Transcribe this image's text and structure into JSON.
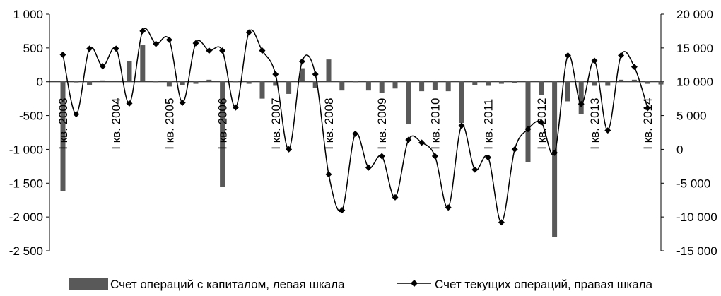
{
  "chart_data": {
    "type": "bar+line",
    "title": "",
    "x_tick_labels": [
      "I кв. 2003",
      "I кв. 2004",
      "I кв. 2005",
      "I кв. 2006",
      "I кв. 2007",
      "I кв. 2008",
      "I кв. 2009",
      "I кв. 2010",
      "I кв. 2011",
      "I кв. 2012",
      "I кв. 2013",
      "I кв. 2014"
    ],
    "x_tick_positions": [
      0,
      4,
      8,
      12,
      16,
      20,
      24,
      28,
      32,
      36,
      40,
      44
    ],
    "left_axis": {
      "ylim": [
        -2500,
        1000
      ],
      "ticks": [
        1000,
        500,
        0,
        -500,
        -1000,
        -1500,
        -2000,
        -2500
      ],
      "tick_labels": [
        "1 000",
        "500",
        "0",
        "-500",
        "-1 000",
        "-1 500",
        "-2 000",
        "-2 500"
      ]
    },
    "right_axis": {
      "ylim": [
        -15000,
        20000
      ],
      "ticks": [
        20000,
        15000,
        10000,
        5000,
        0,
        -5000,
        -10000,
        -15000
      ],
      "tick_labels": [
        "20 000",
        "15 000",
        "10 000",
        "5 000",
        "0",
        "-5 000",
        "-10 000",
        "-15 000"
      ]
    },
    "legend_position": "bottom",
    "series": [
      {
        "name": "Счет операций с капиталом, левая шкала",
        "type": "bar",
        "axis": "left",
        "color": "#595959",
        "values": [
          -1620,
          -10,
          -50,
          20,
          10,
          310,
          540,
          0,
          -70,
          -50,
          -30,
          30,
          -1550,
          0,
          -30,
          -250,
          -60,
          -180,
          200,
          -90,
          330,
          -130,
          0,
          -130,
          -160,
          -100,
          -630,
          -140,
          -120,
          -140,
          -610,
          -50,
          -60,
          -30,
          -20,
          -1190,
          -200,
          -2300,
          -290,
          -480,
          -60,
          -60,
          30,
          30,
          -30,
          -40
        ]
      },
      {
        "name": "Счет текущих операций, правая шкала",
        "type": "line",
        "axis": "right",
        "color": "#000000",
        "marker": "diamond",
        "values": [
          14000,
          5200,
          14900,
          12300,
          14900,
          6800,
          17500,
          15600,
          16200,
          6900,
          15700,
          14600,
          14600,
          6200,
          17300,
          14600,
          11100,
          0,
          13000,
          11100,
          -3700,
          -9000,
          2300,
          -2700,
          -1000,
          -7100,
          1400,
          1000,
          -1000,
          -8600,
          3500,
          -3000,
          -1200,
          -10800,
          0,
          3000,
          4000,
          -500,
          13900,
          6700,
          13100,
          2800,
          13900,
          12200,
          6100
        ]
      }
    ]
  }
}
